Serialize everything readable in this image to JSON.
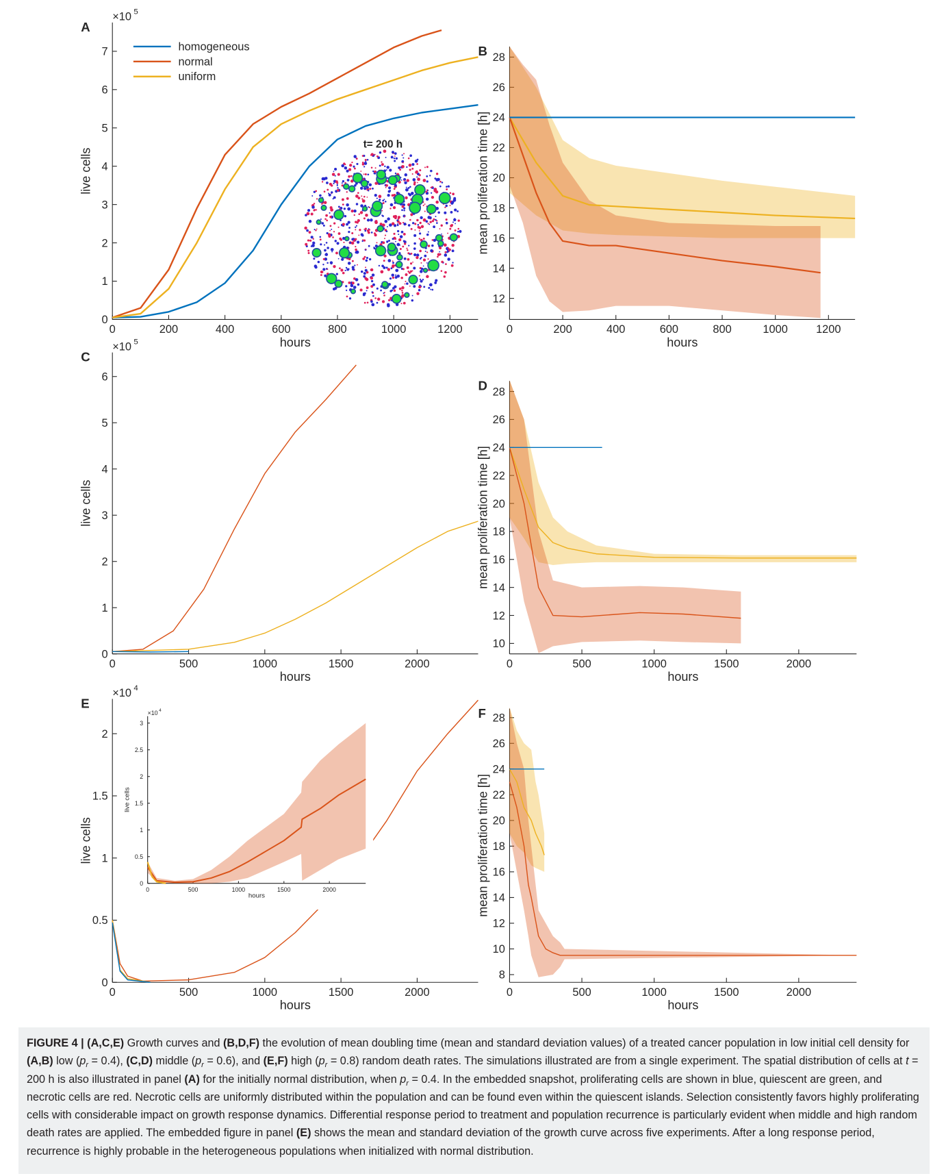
{
  "chart_data": [
    {
      "type": "line",
      "panel": "A",
      "ylabel": "live cells",
      "xlabel": "hours",
      "y_multiplier": "×10",
      "y_exponent": "5",
      "xlim": [
        0,
        1300
      ],
      "ylim": [
        0,
        7.75
      ],
      "xticks": [
        0,
        200,
        400,
        600,
        800,
        1000,
        1200
      ],
      "yticks": [
        0,
        1,
        2,
        3,
        4,
        5,
        6,
        7
      ],
      "legend": "upper left",
      "snapshot_label": "t= 200 h",
      "series": [
        {
          "name": "homogeneous",
          "color": "#0072BD",
          "x": [
            0,
            100,
            200,
            300,
            400,
            500,
            600,
            700,
            800,
            900,
            1000,
            1100,
            1200,
            1300
          ],
          "values": [
            0.05,
            0.07,
            0.2,
            0.45,
            0.95,
            1.8,
            3.0,
            4.0,
            4.7,
            5.05,
            5.25,
            5.4,
            5.5,
            5.6
          ]
        },
        {
          "name": "normal",
          "color": "#D95319",
          "x": [
            0,
            100,
            200,
            300,
            400,
            500,
            600,
            700,
            800,
            900,
            1000,
            1100,
            1170
          ],
          "values": [
            0.05,
            0.3,
            1.3,
            2.9,
            4.3,
            5.1,
            5.55,
            5.9,
            6.3,
            6.7,
            7.1,
            7.4,
            7.55
          ]
        },
        {
          "name": "uniform",
          "color": "#EDB120",
          "x": [
            0,
            100,
            200,
            300,
            400,
            500,
            600,
            700,
            800,
            900,
            1000,
            1100,
            1200,
            1300
          ],
          "values": [
            0.05,
            0.15,
            0.8,
            2.0,
            3.4,
            4.5,
            5.1,
            5.45,
            5.75,
            6.0,
            6.25,
            6.5,
            6.7,
            6.85
          ]
        }
      ]
    },
    {
      "type": "line",
      "panel": "B",
      "ylabel": "mean proliferation time [h]",
      "xlabel": "hours",
      "xlim": [
        0,
        1300
      ],
      "ylim": [
        10.6,
        28.7
      ],
      "xticks": [
        0,
        200,
        400,
        600,
        800,
        1000,
        1200
      ],
      "yticks": [
        12,
        14,
        16,
        18,
        20,
        22,
        24,
        26,
        28
      ],
      "series": [
        {
          "color": "#EDB120",
          "x": [
            0,
            100,
            200,
            300,
            400,
            600,
            800,
            1000,
            1300
          ],
          "values": [
            24,
            21,
            18.8,
            18.2,
            18.1,
            17.9,
            17.7,
            17.5,
            17.3
          ],
          "upper": [
            28.7,
            26,
            22.5,
            21.3,
            20.8,
            20.3,
            19.8,
            19.4,
            18.8
          ],
          "lower": [
            19,
            17.5,
            16.5,
            16.3,
            16.2,
            16.1,
            16,
            16,
            16
          ]
        },
        {
          "color": "#D95319",
          "x": [
            0,
            50,
            100,
            150,
            200,
            300,
            400,
            600,
            800,
            1000,
            1170
          ],
          "values": [
            24,
            21.5,
            19,
            17,
            15.8,
            15.5,
            15.5,
            15,
            14.5,
            14.1,
            13.7
          ],
          "upper": [
            28.7,
            27.5,
            26.5,
            23.5,
            21,
            18.5,
            17.5,
            17,
            16.9,
            16.8,
            16.8
          ],
          "lower": [
            19.5,
            17,
            13.5,
            11.8,
            11.1,
            11.2,
            11.5,
            11.5,
            11.2,
            10.9,
            10.7
          ]
        },
        {
          "color": "#0072BD",
          "x": [
            0,
            1300
          ],
          "values": [
            24,
            24
          ]
        }
      ]
    },
    {
      "type": "line",
      "panel": "C",
      "ylabel": "live cells",
      "xlabel": "hours",
      "y_multiplier": "×10",
      "y_exponent": "5",
      "xlim": [
        0,
        2400
      ],
      "ylim": [
        0,
        6.52
      ],
      "xticks": [
        0,
        500,
        1000,
        1500,
        2000
      ],
      "yticks": [
        0,
        1,
        2,
        3,
        4,
        5,
        6
      ],
      "series": [
        {
          "color": "#D95319",
          "x": [
            0,
            200,
            400,
            600,
            800,
            1000,
            1200,
            1400,
            1600
          ],
          "values": [
            0.05,
            0.1,
            0.5,
            1.4,
            2.7,
            3.9,
            4.8,
            5.5,
            6.25
          ]
        },
        {
          "color": "#EDB120",
          "x": [
            0,
            500,
            800,
            1000,
            1200,
            1400,
            1600,
            1800,
            2000,
            2200,
            2400
          ],
          "values": [
            0.05,
            0.1,
            0.25,
            0.45,
            0.75,
            1.1,
            1.5,
            1.9,
            2.3,
            2.65,
            2.87
          ]
        },
        {
          "color": "#0072BD",
          "x": [
            0,
            250,
            500
          ],
          "values": [
            0.05,
            0.04,
            0.05
          ]
        }
      ]
    },
    {
      "type": "line",
      "panel": "D",
      "ylabel": "mean proliferation time [h]",
      "xlabel": "hours",
      "xlim": [
        0,
        2400
      ],
      "ylim": [
        9.25,
        28.75
      ],
      "xticks": [
        0,
        500,
        1000,
        1500,
        2000
      ],
      "yticks": [
        10,
        12,
        14,
        16,
        18,
        20,
        22,
        24,
        26,
        28
      ],
      "series": [
        {
          "color": "#EDB120",
          "x": [
            0,
            100,
            200,
            300,
            400,
            600,
            1000,
            1600,
            2400
          ],
          "values": [
            24,
            21,
            18.3,
            17.2,
            16.8,
            16.4,
            16.15,
            16.1,
            16.1
          ],
          "upper": [
            28.8,
            26,
            21.5,
            19,
            18,
            17,
            16.4,
            16.3,
            16.3
          ],
          "lower": [
            19,
            17.5,
            15.8,
            15.6,
            15.7,
            15.8,
            15.8,
            15.8,
            15.8
          ]
        },
        {
          "color": "#D95319",
          "x": [
            0,
            100,
            200,
            300,
            500,
            900,
            1200,
            1600
          ],
          "values": [
            24,
            20,
            14,
            12,
            11.9,
            12.2,
            12.1,
            11.8
          ],
          "upper": [
            28.8,
            26,
            18,
            14.5,
            14,
            14.1,
            14,
            13.7
          ],
          "lower": [
            19,
            13,
            9.3,
            9.8,
            10.1,
            10.2,
            10.1,
            10
          ]
        },
        {
          "color": "#0072BD",
          "x": [
            0,
            640
          ],
          "values": [
            24,
            24
          ]
        }
      ]
    },
    {
      "type": "line",
      "panel": "E",
      "ylabel": "live cells",
      "xlabel": "hours",
      "y_multiplier": "×10",
      "y_exponent": "4",
      "xlim": [
        0,
        2400
      ],
      "ylim": [
        0,
        2.28
      ],
      "xticks": [
        0,
        500,
        1000,
        1500,
        2000
      ],
      "yticks": [
        0,
        0.5,
        1,
        1.5,
        2
      ],
      "series": [
        {
          "color": "#D95319",
          "x": [
            0,
            50,
            100,
            200,
            500,
            800,
            1000,
            1200,
            1400,
            1600,
            1800,
            2000,
            2200,
            2400
          ],
          "values": [
            0.5,
            0.15,
            0.05,
            0.01,
            0.02,
            0.08,
            0.2,
            0.4,
            0.65,
            0.95,
            1.3,
            1.7,
            2.0,
            2.27
          ]
        },
        {
          "color": "#EDB120",
          "x": [
            0,
            50,
            100,
            250
          ],
          "values": [
            0.5,
            0.1,
            0.03,
            0
          ]
        },
        {
          "color": "#0072BD",
          "x": [
            0,
            50,
            100,
            250
          ],
          "values": [
            0.48,
            0.09,
            0.02,
            0
          ]
        }
      ]
    },
    {
      "type": "line",
      "panel": "F",
      "ylabel": "mean proliferation time [h]",
      "xlabel": "hours",
      "xlim": [
        0,
        2400
      ],
      "ylim": [
        7.4,
        28.7
      ],
      "xticks": [
        0,
        500,
        1000,
        1500,
        2000
      ],
      "yticks": [
        8,
        10,
        12,
        14,
        16,
        18,
        20,
        22,
        24,
        26,
        28
      ],
      "series": [
        {
          "color": "#EDB120",
          "x": [
            0,
            50,
            100,
            150,
            180,
            200,
            220,
            240
          ],
          "values": [
            24,
            23,
            21,
            20,
            19,
            18.5,
            18,
            17.3
          ],
          "upper": [
            28.8,
            27,
            26,
            25.5,
            23,
            22,
            20.5,
            19
          ],
          "lower": [
            19,
            18,
            17.5,
            16.5,
            16.3,
            16.2,
            16.1,
            16
          ]
        },
        {
          "color": "#D95319",
          "x": [
            0,
            50,
            100,
            130,
            150,
            200,
            250,
            300,
            350,
            380,
            2400
          ],
          "values": [
            23,
            21,
            18,
            15,
            14,
            11,
            10,
            9.7,
            9.5,
            9.5,
            9.5
          ],
          "upper": [
            28.8,
            26,
            24,
            20,
            18,
            13,
            12,
            11,
            10.5,
            10,
            9.5
          ],
          "lower": [
            19,
            16,
            13,
            11,
            9.5,
            7.8,
            7.9,
            8,
            8.6,
            9.2,
            9.5
          ]
        },
        {
          "color": "#0072BD",
          "x": [
            0,
            240
          ],
          "values": [
            24,
            24
          ]
        }
      ]
    },
    {
      "type": "line",
      "inset_of": "E",
      "ylabel": "live cells",
      "xlabel": "hours",
      "y_multiplier": "×10",
      "y_exponent": "4",
      "xlim": [
        0,
        2400
      ],
      "ylim": [
        0,
        3.13
      ],
      "xticks": [
        0,
        500,
        1000,
        1500,
        2000
      ],
      "yticks": [
        0,
        0.5,
        1,
        1.5,
        2,
        2.5,
        3
      ],
      "series": [
        {
          "color": "#D95319",
          "x": [
            0,
            100,
            300,
            500,
            700,
            900,
            1100,
            1300,
            1500,
            1690,
            1700,
            1900,
            2100,
            2400
          ],
          "values": [
            0.3,
            0.05,
            0.02,
            0.03,
            0.1,
            0.22,
            0.4,
            0.6,
            0.8,
            1.05,
            1.2,
            1.4,
            1.65,
            1.95
          ],
          "upper": [
            0.4,
            0.1,
            0.05,
            0.08,
            0.25,
            0.5,
            0.8,
            1.05,
            1.3,
            1.7,
            1.9,
            2.3,
            2.6,
            3.0
          ],
          "lower": [
            0.2,
            0.02,
            0,
            0,
            0,
            0.03,
            0.1,
            0.25,
            0.4,
            0.55,
            0.05,
            0.25,
            0.45,
            0.65
          ]
        },
        {
          "color": "#EDB120",
          "x": [
            0,
            50,
            100,
            200
          ],
          "values": [
            0.4,
            0.12,
            0.03,
            0
          ]
        }
      ]
    }
  ],
  "caption": {
    "runs": [
      {
        "text": "FIGURE 4 | (A,C,E)",
        "style": "b"
      },
      {
        "text": " Growth curves and "
      },
      {
        "text": "(B,D,F)",
        "style": "b"
      },
      {
        "text": " the evolution of mean doubling time (mean and standard deviation values) of a treated cancer population in low initial cell density for "
      },
      {
        "text": "(A,B)",
        "style": "b"
      },
      {
        "text": " low ("
      },
      {
        "text": "p",
        "style": "i"
      },
      {
        "text": "r",
        "style": "sub"
      },
      {
        "text": " = 0.4), "
      },
      {
        "text": "(C,D)",
        "style": "b"
      },
      {
        "text": " middle ("
      },
      {
        "text": "p",
        "style": "i"
      },
      {
        "text": "r",
        "style": "sub"
      },
      {
        "text": " = 0.6), and "
      },
      {
        "text": "(E,F)",
        "style": "b"
      },
      {
        "text": " high ("
      },
      {
        "text": "p",
        "style": "i"
      },
      {
        "text": "r",
        "style": "sub"
      },
      {
        "text": " = 0.8) random death rates. The simulations illustrated are from a single experiment. The spatial distribution of cells at "
      },
      {
        "text": "t",
        "style": "i"
      },
      {
        "text": " = 200 h is also illustrated in panel "
      },
      {
        "text": "(A)",
        "style": "b"
      },
      {
        "text": " for the initially normal distribution, when "
      },
      {
        "text": "p",
        "style": "i"
      },
      {
        "text": "r",
        "style": "sub"
      },
      {
        "text": " = 0.4. In the embedded snapshot, proliferating cells are shown in blue, quiescent are green, and necrotic cells are red. Necrotic cells are uniformly distributed within the population and can be found even within the quiescent islands. Selection consistently favors highly proliferating cells with considerable impact on growth response dynamics. Differential response period to treatment and population recurrence is particularly evident when middle and high random death rates are applied. The embedded figure in panel "
      },
      {
        "text": "(E)",
        "style": "b"
      },
      {
        "text": " shows the mean and standard deviation of the growth curve across five experiments. After a long response period, recurrence is highly probable in the heterogeneous populations when initialized with normal distribution."
      }
    ]
  }
}
